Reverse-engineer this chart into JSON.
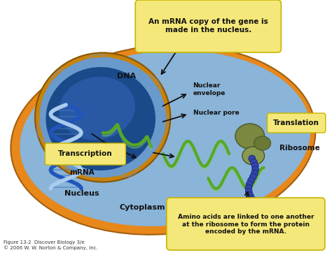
{
  "fig_width": 4.74,
  "fig_height": 3.65,
  "dpi": 100,
  "bg_color": "#ffffff",
  "cell_outer_color": "#e8871a",
  "cell_inner_color": "#8ab4d8",
  "nucleus_envelope_color": "#c8820a",
  "nucleus_inner_color": "#3a6faf",
  "nucleus_deep_color": "#1a4a8a",
  "nucleus_highlight_color": "#3060b0",
  "annotation_box_color": "#f5e87a",
  "annotation_box_edge": "#c8b400",
  "top_note": "An mRNA copy of the gene is\nmade in the nucleus.",
  "bottom_note": "Amino acids are linked to one another\nat the ribosome to form the protein\nencoded by the mRNA.",
  "label_dna": "DNA",
  "label_transcription": "Transcription",
  "label_mrna": "mRNA",
  "label_nucleus": "Nucleus",
  "label_cytoplasm": "Cytoplasm",
  "label_nuclear_envelope": "Nuclear\nenvelope",
  "label_nuclear_pore": "Nuclear pore",
  "label_translation": "Translation",
  "label_ribosome": "Ribosome",
  "caption": "Figure 13-2  Discover Biology 3/e\n© 2006 W. W. Norton & Company, Inc.",
  "arrow_color": "#111111",
  "dna_color1": "#2255bb",
  "dna_color2": "#aaccee",
  "mrna_color": "#55aa22",
  "mrna_highlight": "#88cc55",
  "ribosome_color1": "#7a8840",
  "ribosome_color2": "#8a9a50",
  "ribosome_color3": "#6a7a35",
  "protein_color": "#3344aa"
}
